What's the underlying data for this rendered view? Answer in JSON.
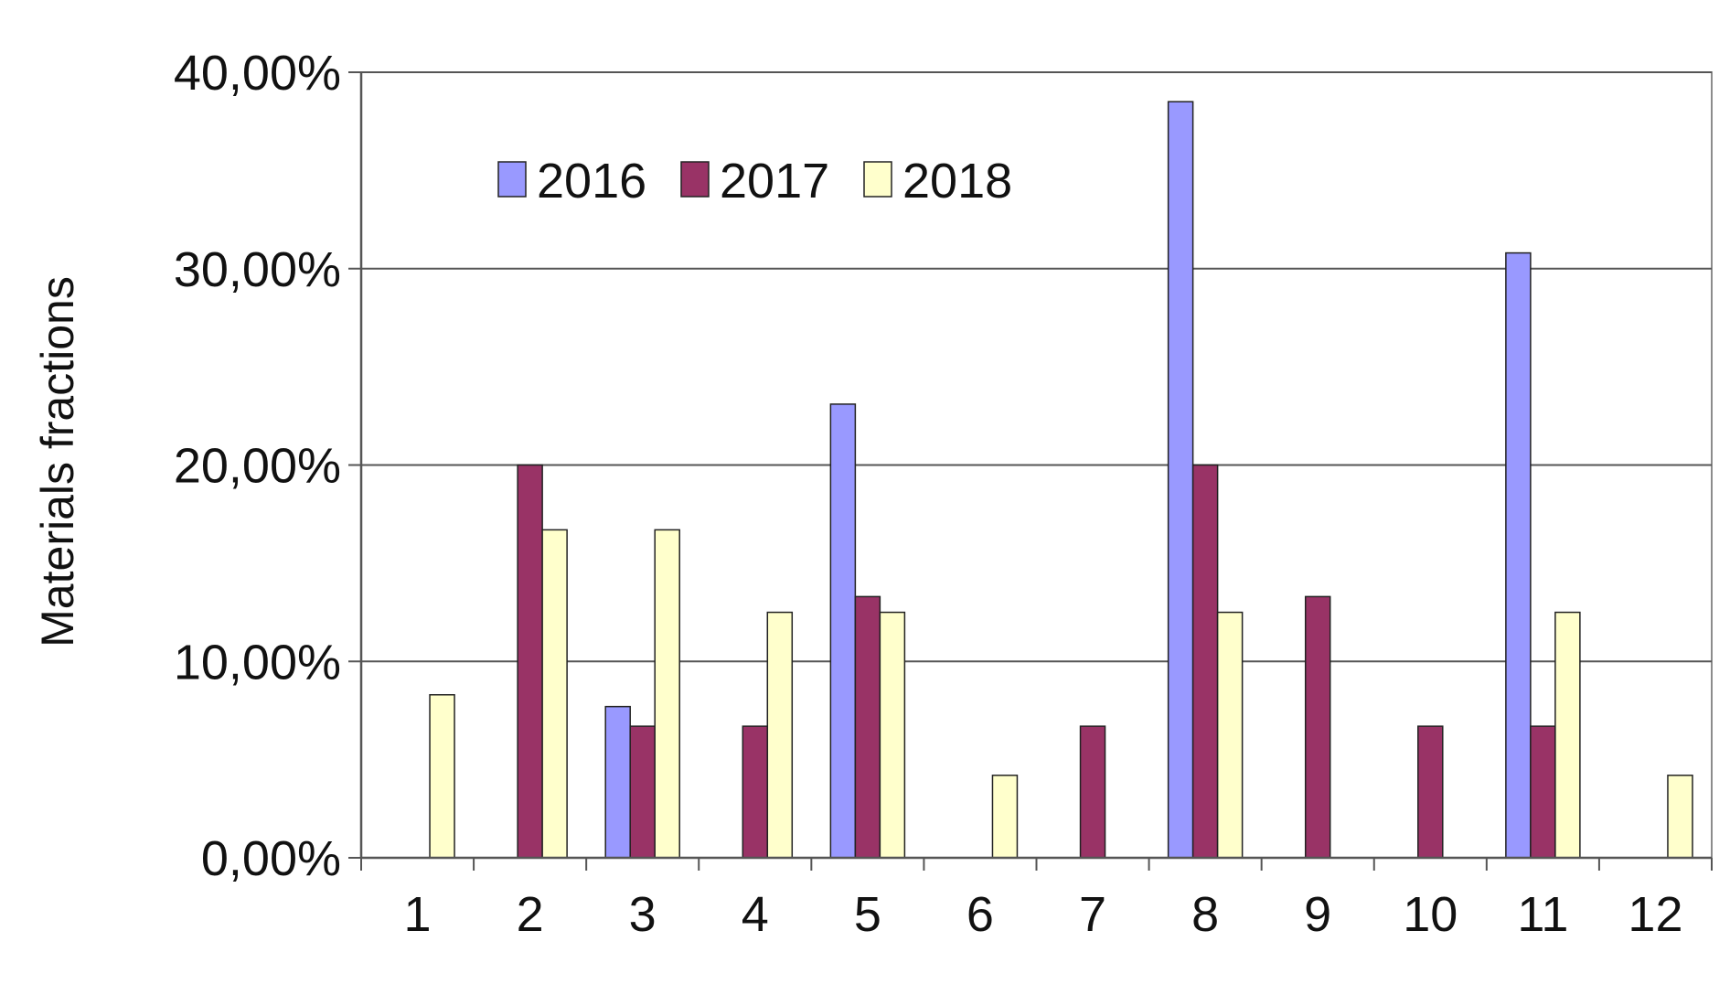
{
  "chart_data": {
    "type": "bar",
    "title": "",
    "xlabel": "",
    "ylabel": "Materials fractions",
    "ylim": [
      0,
      40
    ],
    "yticks": [
      0,
      10,
      20,
      30,
      40
    ],
    "ytick_labels": [
      "0,00%",
      "10,00%",
      "20,00%",
      "30,00%",
      "40,00%"
    ],
    "categories": [
      "1",
      "2",
      "3",
      "4",
      "5",
      "6",
      "7",
      "8",
      "9",
      "10",
      "11",
      "12"
    ],
    "grid": "horizontal",
    "legend_position": "top-left",
    "series": [
      {
        "name": "2016",
        "color": "#9999ff",
        "values": [
          0,
          0,
          7.7,
          0,
          23.1,
          0,
          0,
          38.5,
          0,
          0,
          30.8,
          0
        ]
      },
      {
        "name": "2017",
        "color": "#993366",
        "values": [
          0,
          20.0,
          6.7,
          6.7,
          13.3,
          0,
          6.7,
          20.0,
          13.3,
          6.7,
          6.7,
          0
        ]
      },
      {
        "name": "2018",
        "color": "#ffffcc",
        "values": [
          8.3,
          16.7,
          16.7,
          12.5,
          12.5,
          4.2,
          0,
          12.5,
          0,
          0,
          12.5,
          4.2
        ]
      }
    ]
  }
}
